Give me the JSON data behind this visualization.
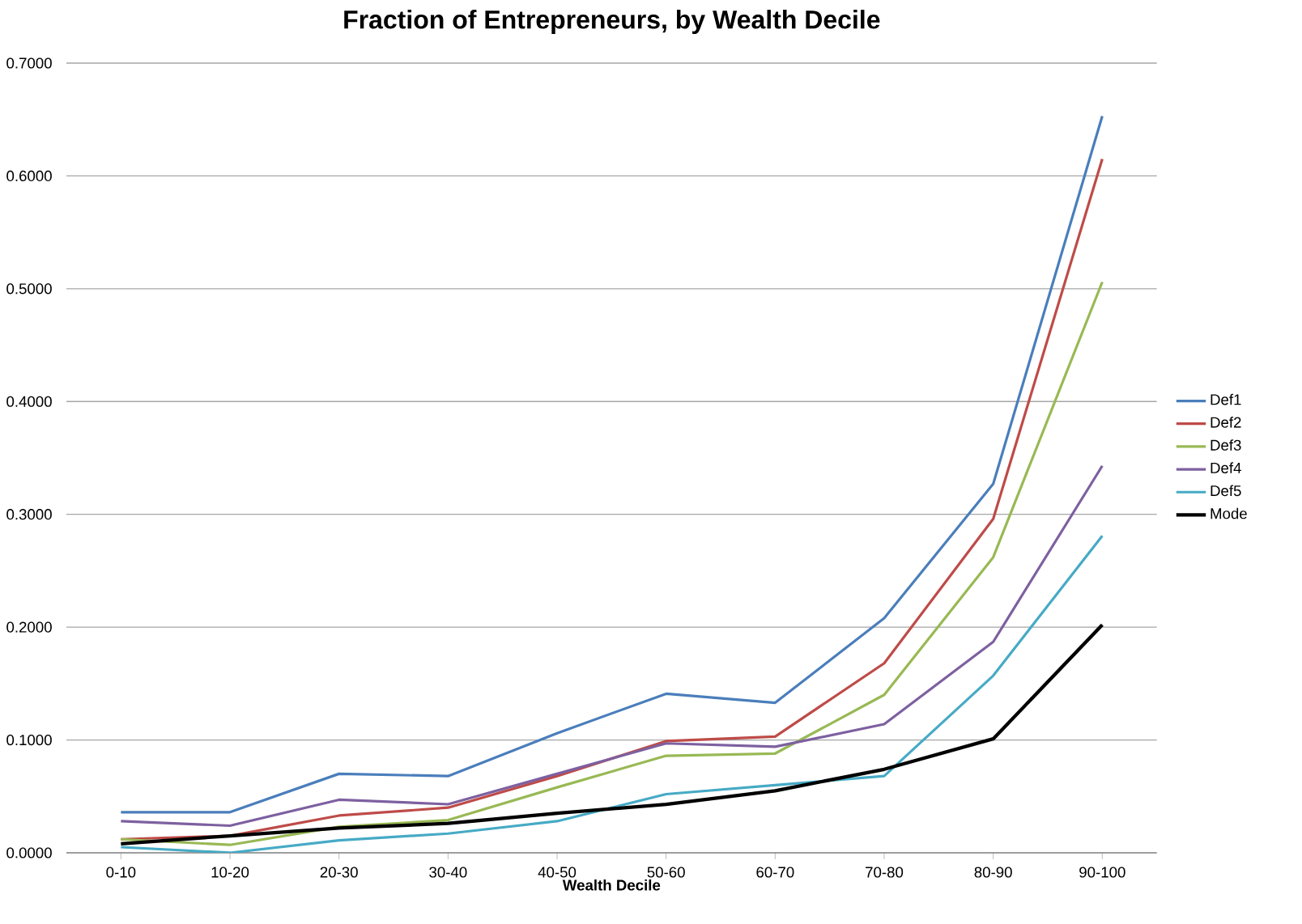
{
  "chart_data": {
    "type": "line",
    "title": "Fraction of Entrepreneurs, by Wealth Decile",
    "xlabel": "Wealth Decile",
    "categories": [
      "0-10",
      "10-20",
      "20-30",
      "30-40",
      "40-50",
      "50-60",
      "60-70",
      "70-80",
      "80-90",
      "90-100"
    ],
    "ylim": [
      0,
      0.7
    ],
    "yticks": [
      {
        "value": 0,
        "label": "0.0000"
      },
      {
        "value": 0.1,
        "label": "0.1000"
      },
      {
        "value": 0.2,
        "label": "0.2000"
      },
      {
        "value": 0.3,
        "label": "0.3000"
      },
      {
        "value": 0.4,
        "label": "0.4000"
      },
      {
        "value": 0.5,
        "label": "0.5000"
      },
      {
        "value": 0.6,
        "label": "0.6000"
      },
      {
        "value": 0.7,
        "label": "0.7000"
      }
    ],
    "grid": "y",
    "legend": "right",
    "marker": "none",
    "line_style": "solid",
    "series": [
      {
        "name": "Def1",
        "color": "#4a7ebb",
        "values": [
          0.036,
          0.036,
          0.07,
          0.068,
          0.106,
          0.141,
          0.133,
          0.208,
          0.327,
          0.653
        ]
      },
      {
        "name": "Def2",
        "color": "#be4b48",
        "values": [
          0.012,
          0.015,
          0.033,
          0.04,
          0.068,
          0.099,
          0.103,
          0.168,
          0.296,
          0.615
        ]
      },
      {
        "name": "Def3",
        "color": "#98b954",
        "values": [
          0.012,
          0.007,
          0.023,
          0.029,
          0.058,
          0.086,
          0.088,
          0.14,
          0.262,
          0.506
        ]
      },
      {
        "name": "Def4",
        "color": "#7d60a0",
        "values": [
          0.028,
          0.024,
          0.047,
          0.043,
          0.07,
          0.097,
          0.094,
          0.114,
          0.187,
          0.343
        ]
      },
      {
        "name": "Def5",
        "color": "#46aac5",
        "values": [
          0.005,
          0.0,
          0.011,
          0.017,
          0.028,
          0.052,
          0.06,
          0.068,
          0.157,
          0.281
        ]
      },
      {
        "name": "Mode",
        "color": "#000000",
        "values": [
          0.008,
          0.015,
          0.022,
          0.026,
          0.035,
          0.043,
          0.055,
          0.074,
          0.101,
          0.202
        ]
      }
    ]
  }
}
